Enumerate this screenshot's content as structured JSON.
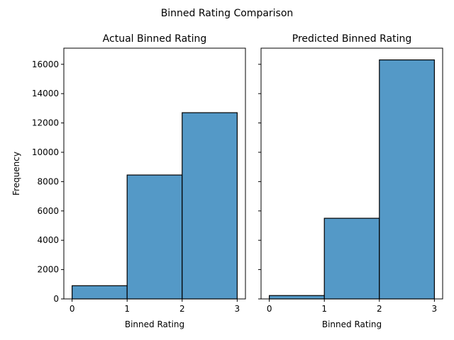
{
  "figure_title": "Binned Rating Comparison",
  "chart_data": [
    {
      "type": "bar",
      "title": "Actual Binned Rating",
      "xlabel": "Binned Rating",
      "ylabel": "Frequency",
      "bins": [
        [
          0,
          1
        ],
        [
          1,
          2
        ],
        [
          2,
          3
        ]
      ],
      "values": [
        900,
        8450,
        12700
      ],
      "xlim": [
        -0.15,
        3.15
      ],
      "ylim": [
        0,
        17100
      ],
      "xticks": [
        0,
        1,
        2,
        3
      ],
      "yticks": [
        0,
        2000,
        4000,
        6000,
        8000,
        10000,
        12000,
        14000,
        16000
      ],
      "show_ytick_labels": true,
      "bar_color": "#5499c7",
      "grid": false
    },
    {
      "type": "bar",
      "title": "Predicted Binned Rating",
      "xlabel": "Binned Rating",
      "ylabel": "",
      "bins": [
        [
          0,
          1
        ],
        [
          1,
          2
        ],
        [
          2,
          3
        ]
      ],
      "values": [
        230,
        5500,
        16300
      ],
      "xlim": [
        -0.15,
        3.15
      ],
      "ylim": [
        0,
        17100
      ],
      "xticks": [
        0,
        1,
        2,
        3
      ],
      "yticks": [
        0,
        2000,
        4000,
        6000,
        8000,
        10000,
        12000,
        14000,
        16000
      ],
      "show_ytick_labels": false,
      "bar_color": "#5499c7",
      "grid": false
    }
  ]
}
